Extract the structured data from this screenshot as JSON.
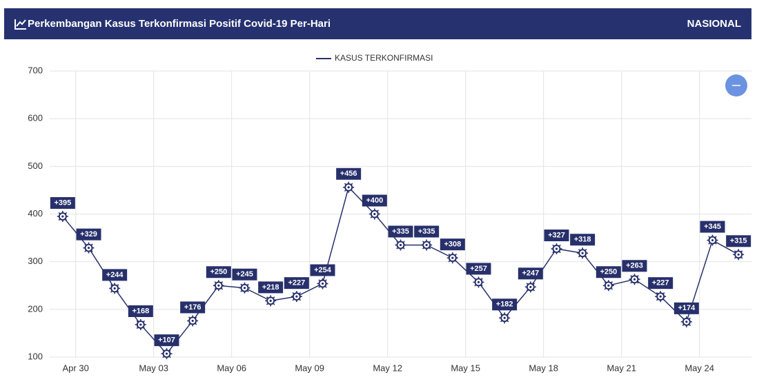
{
  "header": {
    "title": "Perkembangan Kasus Terkonfirmasi Positif Covid-19 Per-Hari",
    "region": "NASIONAL"
  },
  "chart_data": {
    "type": "line",
    "categories": [
      null,
      "Apr 30",
      null,
      null,
      "May 03",
      null,
      null,
      "May 06",
      null,
      null,
      "May 09",
      null,
      null,
      "May 12",
      null,
      null,
      "May 15",
      null,
      null,
      "May 18",
      null,
      null,
      "May 21",
      null,
      null,
      "May 24",
      null
    ],
    "series": [
      {
        "name": "KASUS TERKONFIRMASI",
        "color": "#27306b",
        "values": [
          395,
          329,
          244,
          168,
          107,
          176,
          250,
          245,
          218,
          227,
          254,
          456,
          400,
          335,
          335,
          308,
          257,
          182,
          247,
          327,
          318,
          250,
          263,
          227,
          174,
          345,
          315
        ],
        "value_labels": [
          "+395",
          "+329",
          "+244",
          "+168",
          "+107",
          "+176",
          "+250",
          "+245",
          "+218",
          "+227",
          "+254",
          "+456",
          "+400",
          "+335",
          "+335",
          "+308",
          "+257",
          "+182",
          "+247",
          "+327",
          "+318",
          "+250",
          "+263",
          "+227",
          "+174",
          "+345",
          "+315"
        ]
      }
    ],
    "ylim": [
      100,
      700
    ],
    "yticks": [
      100,
      200,
      300,
      400,
      500,
      600,
      700
    ],
    "grid": true,
    "legend": "top"
  }
}
